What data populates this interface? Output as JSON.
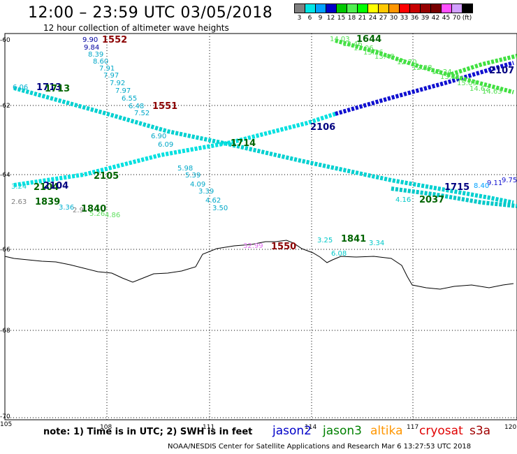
{
  "header": {
    "title": "12:00 – 23:59 UTC 03/05/2018",
    "subtitle": "12 hour collection of altimeter wave heights"
  },
  "scale": {
    "colors": [
      "#808080",
      "#00e5e5",
      "#00a0ff",
      "#0000c8",
      "#00c800",
      "#50f050",
      "#00ff00",
      "#ffff00",
      "#ffc800",
      "#ff9600",
      "#ff0000",
      "#c80000",
      "#960000",
      "#780000",
      "#ff50ff",
      "#d2a0ff",
      "#000000"
    ],
    "labels": [
      "3",
      "6",
      "9",
      "12",
      "15",
      "18",
      "21",
      "24",
      "27",
      "30",
      "33",
      "36",
      "39",
      "42",
      "45",
      "70",
      "(ft)"
    ]
  },
  "axes": {
    "x_labels": [
      "105",
      "108",
      "111",
      "114",
      "117",
      "120"
    ],
    "y_labels": [
      "-60",
      "-62",
      "-64",
      "-66",
      "-68",
      "-70"
    ]
  },
  "passes": [
    {
      "time": "1552",
      "color": "#8b0000"
    },
    {
      "time": "1551",
      "color": "#8b0000"
    },
    {
      "time": "1550",
      "color": "#8b0000"
    },
    {
      "time": "1644",
      "color": "#006400"
    },
    {
      "time": "1713",
      "color": "#000080"
    },
    {
      "time": "1713",
      "color": "#006400"
    },
    {
      "time": "1714",
      "color": "#006400"
    },
    {
      "time": "2106",
      "color": "#000080"
    },
    {
      "time": "2105",
      "color": "#006400"
    },
    {
      "time": "2104",
      "color": "#006400"
    },
    {
      "time": "2104",
      "color": "#000080"
    },
    {
      "time": "1839",
      "color": "#006400"
    },
    {
      "time": "1840",
      "color": "#006400"
    },
    {
      "time": "1841",
      "color": "#006400"
    },
    {
      "time": "1715",
      "color": "#000080"
    },
    {
      "time": "2037",
      "color": "#006400"
    },
    {
      "time": "2107",
      "color": "#000080"
    }
  ],
  "wave_heights": {
    "track_a": [
      "9.90",
      "9.84",
      "8.39",
      "8.60",
      "7.91",
      "7.97",
      "7.92",
      "7.97",
      "6.55",
      "6.48",
      "7.52",
      "6.90",
      "6.09",
      "5.98",
      "5.39",
      "4.09",
      "3.39",
      "4.62",
      "3.50"
    ],
    "track_b": [
      "14.03",
      "13.46",
      "13.06",
      "13.26",
      "13.48",
      "12.70",
      "12.88",
      "13.24",
      "13.31",
      "15.09",
      "14.62",
      "14.63"
    ],
    "track_c": [
      "6.06",
      "2.63",
      "3.36",
      "2.9",
      "3.24",
      "4.86",
      "5.26"
    ],
    "track_d": [
      "3.25",
      "3.34",
      "6.08"
    ],
    "track_e": [
      "4.16",
      "9.11",
      "9.75",
      "8.40"
    ],
    "track_f": [
      "32.99"
    ]
  },
  "legend": {
    "note": "note:  1) Time is in UTC;  2) SWH is in feet",
    "jason2": {
      "label": "jason2",
      "color": "#0000c8"
    },
    "jason3": {
      "label": "jason3",
      "color": "#008000"
    },
    "altika": {
      "label": "altika",
      "color": "#ff9600"
    },
    "cryosat": {
      "label": "cryosat",
      "color": "#e00000"
    },
    "s3a": {
      "label": "s3a",
      "color": "#a00000"
    }
  },
  "credit": "NOAA/NESDIS Center for Satellite Applications and Research    Mar  6 13:27:53 UTC 2018"
}
